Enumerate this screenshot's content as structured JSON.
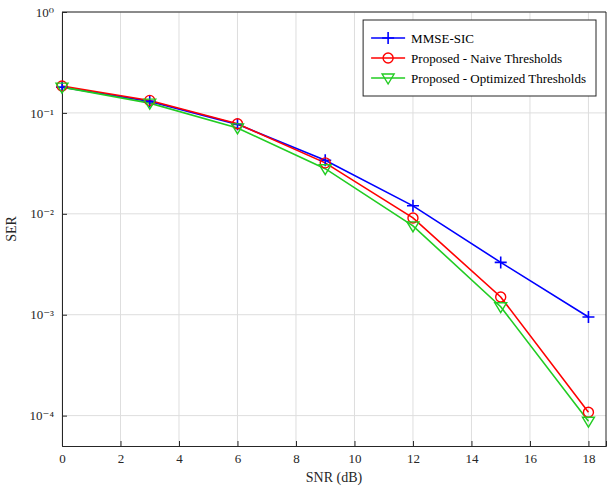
{
  "chart_data": {
    "type": "line",
    "x_label": "SNR (dB)",
    "y_label": "SER",
    "x": [
      0,
      3,
      6,
      9,
      12,
      15,
      18
    ],
    "series": [
      {
        "name": "MMSE-SIC",
        "color": "#0000ff",
        "marker": "plus",
        "line_style": "solid",
        "values": [
          0.18,
          0.13,
          0.077,
          0.034,
          0.012,
          0.0033,
          0.00095
        ]
      },
      {
        "name": "Proposed - Naive Thresholds",
        "color": "#ff0000",
        "marker": "circle",
        "line_style": "solid",
        "values": [
          0.185,
          0.133,
          0.078,
          0.032,
          0.0091,
          0.0015,
          0.000108
        ]
      },
      {
        "name": "Proposed - Optimized Thresholds",
        "color": "#22cc22",
        "marker": "triangle-down",
        "line_style": "solid",
        "values": [
          0.18,
          0.125,
          0.071,
          0.028,
          0.0076,
          0.0012,
          8.8e-05
        ]
      }
    ],
    "xlim": [
      0,
      18.6
    ],
    "xticks": [
      0,
      2,
      4,
      6,
      8,
      10,
      12,
      14,
      16,
      18
    ],
    "ylim": [
      5e-05,
      1
    ],
    "yticks": [
      {
        "value": 0.0001,
        "label": "10⁻⁴"
      },
      {
        "value": 0.001,
        "label": "10⁻³"
      },
      {
        "value": 0.01,
        "label": "10⁻²"
      },
      {
        "value": 0.1,
        "label": "10⁻¹"
      },
      {
        "value": 1,
        "label": "10⁰"
      }
    ],
    "log": "y",
    "grid": true,
    "legend": "top-right"
  }
}
